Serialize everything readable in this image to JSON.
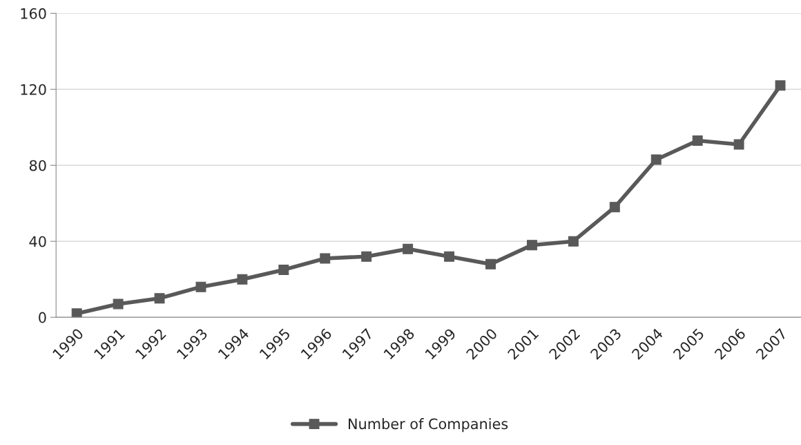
{
  "chart_data": {
    "type": "line",
    "categories": [
      "1990",
      "1991",
      "1992",
      "1993",
      "1994",
      "1995",
      "1996",
      "1997",
      "1998",
      "1999",
      "2000",
      "2001",
      "2002",
      "2003",
      "2004",
      "2005",
      "2006",
      "2007"
    ],
    "series": [
      {
        "name": "Number of Companies",
        "color": "#595959",
        "values": [
          2,
          7,
          10,
          16,
          20,
          25,
          31,
          32,
          36,
          32,
          28,
          38,
          40,
          58,
          83,
          93,
          91,
          122
        ]
      }
    ],
    "ylim": [
      0,
      160
    ],
    "yticks": [
      0,
      40,
      80,
      120,
      160
    ],
    "grid": "y",
    "legend": "bottom",
    "marker": "square",
    "line_style": "solid"
  }
}
